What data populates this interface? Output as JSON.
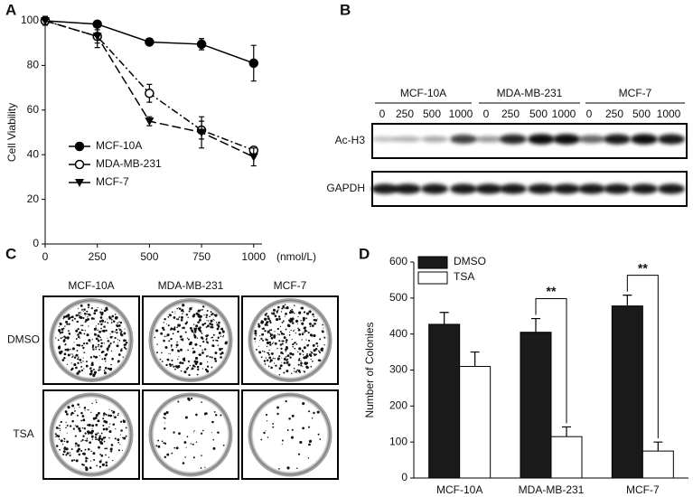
{
  "chart_data": [
    {
      "type": "line",
      "panel": "A",
      "ylabel": "Cell Viability",
      "xlabel": "(nmol/L)",
      "x": [
        0,
        250,
        500,
        750,
        1000
      ],
      "xlim": [
        0,
        1040
      ],
      "xticks": [
        0,
        250,
        500,
        750,
        1000
      ],
      "ylim": [
        0,
        100
      ],
      "yticks": [
        0,
        20,
        40,
        60,
        80,
        100
      ],
      "legend": "lower-left",
      "series": [
        {
          "name": "MCF-10A",
          "color": "#000000",
          "marker": "circle",
          "line_style": "solid",
          "values": [
            100,
            98.5,
            90.5,
            89.5,
            81
          ],
          "errors": [
            0.5,
            1,
            1.5,
            2.5,
            8
          ]
        },
        {
          "name": "MDA-MB-231",
          "color": "#000000",
          "marker": "open-circle",
          "line_style": "dashdot",
          "values": [
            100,
            93,
            67.5,
            51,
            42
          ],
          "errors": [
            1,
            3,
            4,
            4,
            1.5
          ]
        },
        {
          "name": "MCF-7",
          "color": "#000000",
          "marker": "triangle-down",
          "line_style": "dashed",
          "values": [
            100,
            93,
            55,
            50,
            39
          ],
          "errors": [
            2,
            5,
            2,
            7,
            4
          ]
        }
      ]
    },
    {
      "type": "bar",
      "panel": "D",
      "ylabel": "Number of Colonies",
      "categories": [
        "MCF-10A",
        "MDA-MB-231",
        "MCF-7"
      ],
      "ylim": [
        0,
        600
      ],
      "yticks": [
        0,
        100,
        200,
        300,
        400,
        500,
        600
      ],
      "legend": "upper-left",
      "series": [
        {
          "name": "DMSO",
          "color": "#1a1a1a",
          "values": [
            427,
            405,
            478
          ],
          "errors": [
            33,
            38,
            30
          ]
        },
        {
          "name": "TSA",
          "color": "#ffffff",
          "values": [
            310,
            115,
            75
          ],
          "errors": [
            40,
            27,
            25
          ]
        }
      ],
      "annotations": [
        {
          "text": "**",
          "category": 1
        },
        {
          "text": "**",
          "category": 2
        }
      ]
    }
  ],
  "blot": {
    "panel": "B",
    "groups": [
      {
        "name": "MCF-10A",
        "doses": [
          "0",
          "250",
          "500",
          "1000"
        ]
      },
      {
        "name": "MDA-MB-231",
        "doses": [
          "0",
          "250",
          "500",
          "1000"
        ]
      },
      {
        "name": "MCF-7",
        "doses": [
          "0",
          "250",
          "500",
          "1000"
        ]
      }
    ],
    "rows": [
      "Ac-H3",
      "GAPDH"
    ]
  },
  "colonies": {
    "panel": "C",
    "columns": [
      "MCF-10A",
      "MDA-MB-231",
      "MCF-7"
    ],
    "rows": [
      "DMSO",
      "TSA"
    ]
  }
}
